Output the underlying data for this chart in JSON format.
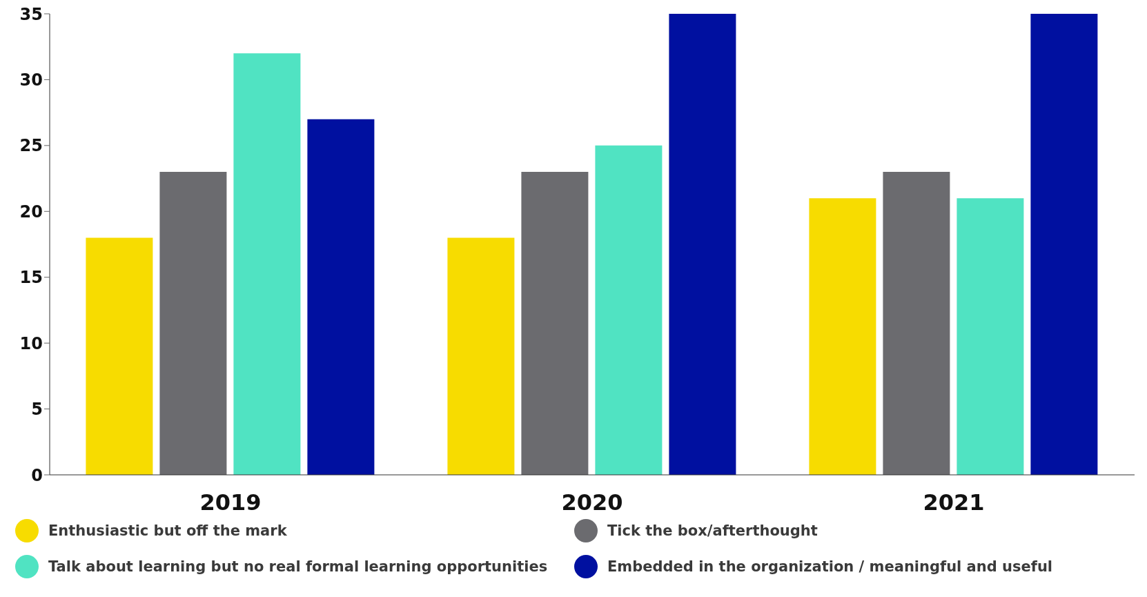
{
  "chart_data": {
    "type": "bar",
    "categories": [
      "2019",
      "2020",
      "2021"
    ],
    "series": [
      {
        "name": "Enthusiastic but off the mark",
        "color": "#f7dc00",
        "values": [
          18,
          18,
          21
        ]
      },
      {
        "name": "Tick the box/afterthought",
        "color": "#6b6b6f",
        "values": [
          23,
          23,
          23
        ]
      },
      {
        "name": "Talk about learning but no real formal learning opportunities",
        "color": "#50e3c2",
        "values": [
          32,
          25,
          21
        ]
      },
      {
        "name": "Embedded in the organization / meaningful and useful",
        "color": "#0010a0",
        "values": [
          27,
          35,
          35
        ]
      }
    ],
    "ylim": [
      0,
      35
    ],
    "yticks": [
      0,
      5,
      10,
      15,
      20,
      25,
      30,
      35
    ],
    "grid": false,
    "legend": "bottom"
  }
}
